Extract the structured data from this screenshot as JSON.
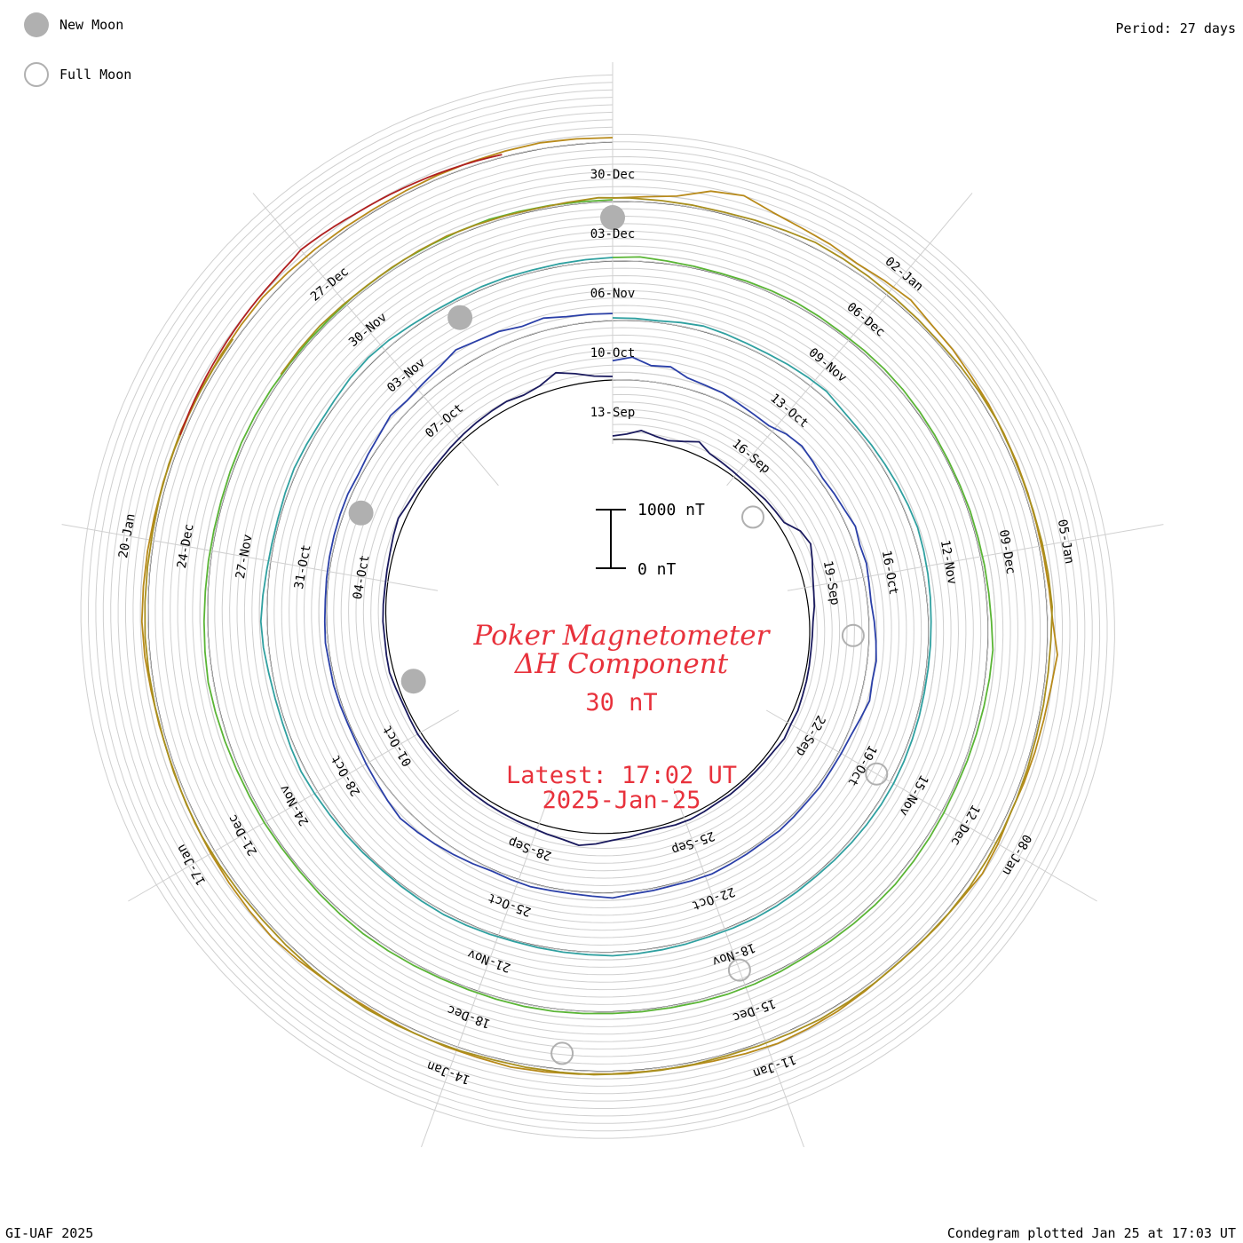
{
  "legend": [
    {
      "label": "New Moon",
      "color": "#b0b0b0",
      "style": "filled"
    },
    {
      "label": "Full Moon",
      "color": "#b0b0b0",
      "style": "outline"
    }
  ],
  "period_label": "Period: 27 days",
  "footer_left": "GI-UAF 2025",
  "footer_right": "Condegram plotted Jan 25 at 17:03 UT",
  "title_line1": "Poker Magnetometer",
  "title_line2": "ΔH Component",
  "subtitle_value": "30 nT",
  "latest_line1": "Latest: 17:02 UT",
  "latest_line2": "2025-Jan-25",
  "scale_top_label": "1000 nT",
  "scale_bottom_label": "0 nT",
  "chart_data": {
    "type": "line",
    "period_days": 27,
    "scale_max_nT": 1000,
    "grid": true,
    "date_ticks": [
      {
        "label": "13-Sep",
        "revolution": 0
      },
      {
        "label": "16-Sep",
        "revolution": 0
      },
      {
        "label": "19-Sep",
        "revolution": 0
      },
      {
        "label": "22-Sep",
        "revolution": 0
      },
      {
        "label": "25-Sep",
        "revolution": 0
      },
      {
        "label": "28-Sep",
        "revolution": 0
      },
      {
        "label": "01-Oct",
        "revolution": 0
      },
      {
        "label": "04-Oct",
        "revolution": 0
      },
      {
        "label": "07-Oct",
        "revolution": 0
      },
      {
        "label": "10-Oct",
        "revolution": 1
      },
      {
        "label": "13-Oct",
        "revolution": 1
      },
      {
        "label": "16-Oct",
        "revolution": 1
      },
      {
        "label": "19-Oct",
        "revolution": 1
      },
      {
        "label": "22-Oct",
        "revolution": 1
      },
      {
        "label": "25-Oct",
        "revolution": 1
      },
      {
        "label": "28-Oct",
        "revolution": 1
      },
      {
        "label": "31-Oct",
        "revolution": 1
      },
      {
        "label": "03-Nov",
        "revolution": 1
      },
      {
        "label": "06-Nov",
        "revolution": 2
      },
      {
        "label": "09-Nov",
        "revolution": 2
      },
      {
        "label": "12-Nov",
        "revolution": 2
      },
      {
        "label": "15-Nov",
        "revolution": 2
      },
      {
        "label": "18-Nov",
        "revolution": 2
      },
      {
        "label": "21-Nov",
        "revolution": 2
      },
      {
        "label": "24-Nov",
        "revolution": 2
      },
      {
        "label": "27-Nov",
        "revolution": 2
      },
      {
        "label": "30-Nov",
        "revolution": 2
      },
      {
        "label": "03-Dec",
        "revolution": 3
      },
      {
        "label": "06-Dec",
        "revolution": 3
      },
      {
        "label": "09-Dec",
        "revolution": 3
      },
      {
        "label": "12-Dec",
        "revolution": 3
      },
      {
        "label": "15-Dec",
        "revolution": 3
      },
      {
        "label": "18-Dec",
        "revolution": 3
      },
      {
        "label": "21-Dec",
        "revolution": 3
      },
      {
        "label": "24-Dec",
        "revolution": 3
      },
      {
        "label": "27-Dec",
        "revolution": 3
      },
      {
        "label": "30-Dec",
        "revolution": 4
      },
      {
        "label": "02-Jan",
        "revolution": 4
      },
      {
        "label": "05-Jan",
        "revolution": 4
      },
      {
        "label": "08-Jan",
        "revolution": 4
      },
      {
        "label": "11-Jan",
        "revolution": 4
      },
      {
        "label": "14-Jan",
        "revolution": 4
      },
      {
        "label": "17-Jan",
        "revolution": 4
      },
      {
        "label": "20-Jan",
        "revolution": 4
      }
    ],
    "moon_phases": [
      {
        "type": "new",
        "date": "02-Oct"
      },
      {
        "type": "full",
        "date": "17-Sep"
      },
      {
        "type": "full",
        "date": "17-Oct"
      },
      {
        "type": "new",
        "date": "01-Nov"
      },
      {
        "type": "full",
        "date": "15-Nov"
      },
      {
        "type": "new",
        "date": "01-Dec"
      },
      {
        "type": "full",
        "date": "15-Dec"
      },
      {
        "type": "new",
        "date": "30-Dec"
      },
      {
        "type": "full",
        "date": "13-Jan"
      }
    ],
    "series": [
      {
        "start": "13-Sep",
        "end": "10-Oct",
        "color": "#1a1a5e",
        "values": [
          40,
          60,
          110,
          70,
          50,
          90,
          150,
          80,
          60,
          45,
          35,
          40,
          55,
          60,
          70,
          180,
          220,
          170,
          120,
          90,
          70,
          40,
          30,
          25,
          30,
          35,
          40,
          50,
          45,
          60,
          40,
          35,
          30,
          30,
          35,
          30,
          40,
          50,
          45,
          30,
          35,
          60,
          80,
          120,
          150,
          110,
          90,
          70,
          60,
          50,
          45,
          40,
          35,
          30,
          30,
          35,
          40,
          30,
          25,
          35,
          50,
          40,
          30,
          35,
          30,
          25,
          30,
          40,
          60,
          80,
          50,
          40,
          30,
          30,
          40,
          50,
          60,
          70,
          80,
          60,
          90,
          180,
          120,
          60,
          40
        ]
      },
      {
        "start": "10-Oct",
        "end": "06-Nov",
        "color": "#2a3fa8",
        "values": [
          220,
          260,
          180,
          200,
          120,
          100,
          90,
          60,
          40,
          30,
          80,
          100,
          70,
          40,
          50,
          60,
          90,
          60,
          70,
          50,
          40,
          60,
          80,
          100,
          90,
          110,
          70,
          40,
          30,
          25,
          30,
          20,
          25,
          30,
          20,
          25,
          30,
          40,
          30,
          20,
          25,
          30,
          60,
          40,
          30,
          30,
          40,
          30,
          20,
          40,
          60,
          80,
          100,
          120,
          90,
          60,
          40,
          20,
          15,
          20,
          25,
          20,
          30,
          20,
          15,
          20,
          25,
          30,
          35,
          40,
          30,
          50,
          70,
          110,
          90,
          110,
          140,
          200,
          170,
          160,
          120,
          140,
          100,
          90,
          80
        ]
      },
      {
        "start": "06-Nov",
        "end": "03-Dec",
        "color": "#2fa0a0",
        "values": [
          30,
          25,
          20,
          40,
          60,
          50,
          40,
          40,
          50,
          60,
          70,
          40,
          30,
          35,
          40,
          50,
          60,
          70,
          60,
          50,
          40,
          30,
          25,
          20,
          20,
          25,
          30,
          35,
          40,
          40,
          35,
          30,
          25,
          20,
          25,
          30,
          30,
          25,
          20,
          25,
          30,
          35,
          40,
          30,
          25,
          20,
          15,
          20,
          25,
          30,
          25,
          20,
          15,
          20,
          25,
          30,
          40,
          50,
          40,
          30,
          30,
          40,
          60,
          70,
          50,
          30,
          20,
          20,
          30,
          40,
          35,
          30,
          40,
          60,
          70,
          60,
          40,
          30,
          25,
          30,
          30,
          25,
          30,
          35,
          40
        ]
      },
      {
        "start": "03-Dec",
        "end": "30-Dec",
        "color": "#5ab535",
        "values": [
          40,
          50,
          30,
          20,
          15,
          20,
          25,
          30,
          25,
          20,
          25,
          30,
          30,
          25,
          20,
          15,
          15,
          20,
          20,
          25,
          30,
          40,
          60,
          50,
          40,
          30,
          25,
          20,
          25,
          30,
          35,
          40,
          35,
          30,
          25,
          20,
          25,
          30,
          30,
          25,
          20,
          20,
          20,
          25,
          30,
          30,
          25,
          20,
          20,
          25,
          30,
          35,
          30,
          25,
          20,
          20,
          25,
          25,
          30,
          40,
          50,
          60,
          50,
          40,
          30,
          25,
          20,
          20,
          25,
          30,
          30,
          25,
          20,
          20,
          20,
          25,
          25,
          30,
          30,
          35,
          40,
          30,
          25,
          20,
          20
        ]
      },
      {
        "start": "30-Dec",
        "end": "26-Jan",
        "color": "#b88a1a",
        "values": [
          40,
          60,
          100,
          220,
          260,
          180,
          140,
          120,
          90,
          110,
          130,
          90,
          80,
          60,
          50,
          40,
          35,
          30,
          25,
          30,
          40,
          60,
          120,
          80,
          60,
          50,
          40,
          30,
          60,
          80,
          50,
          40,
          30,
          25,
          40,
          60,
          70,
          80,
          60,
          40,
          30,
          25,
          30,
          40,
          50,
          60,
          45,
          40,
          35,
          30,
          30,
          40,
          60,
          80,
          70,
          60,
          50,
          40,
          30,
          25,
          30,
          40,
          60,
          70,
          60,
          50,
          40,
          35,
          30,
          30,
          35,
          40,
          50,
          60,
          50,
          40,
          30,
          25,
          30,
          40,
          50,
          60,
          70,
          60,
          50
        ]
      },
      {
        "start": "26-Dec",
        "end": "22-Jan",
        "color": "#a88f1e",
        "values": [
          30,
          35,
          40,
          30,
          25,
          30,
          35,
          40,
          30,
          25,
          20,
          30,
          50,
          40,
          30,
          25,
          20,
          30,
          40,
          60,
          50,
          40,
          30,
          25,
          20,
          30,
          35,
          40,
          30,
          25,
          30,
          40,
          50,
          60,
          40,
          30,
          25,
          20,
          25,
          30,
          35,
          40,
          45,
          40,
          30,
          25,
          30,
          35,
          40,
          30,
          25,
          20,
          25,
          30,
          35,
          40,
          35,
          30,
          25,
          30,
          35,
          40,
          45,
          40,
          35,
          30,
          25,
          30,
          35,
          40,
          35,
          30,
          25,
          30,
          35,
          40,
          35,
          30,
          25,
          30,
          35,
          40,
          35,
          30,
          30
        ]
      },
      {
        "start": "21-Jan",
        "end": "25-Jan",
        "color": "#b02020",
        "values": [
          30,
          35,
          40,
          45,
          50,
          55,
          60,
          65,
          70,
          75,
          80,
          85,
          90,
          95,
          100,
          110,
          120,
          140,
          130,
          120,
          110,
          100,
          90,
          85,
          80,
          75,
          70,
          65,
          60,
          55,
          50,
          45,
          40,
          35,
          30
        ]
      }
    ]
  }
}
